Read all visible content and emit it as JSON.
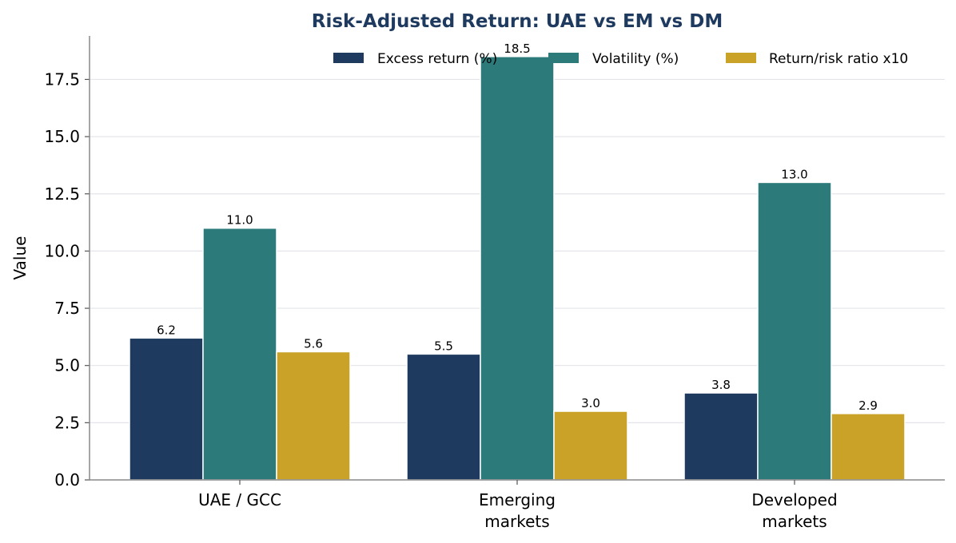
{
  "chart_data": {
    "type": "bar",
    "title": "Risk-Adjusted Return: UAE vs EM vs DM",
    "xlabel": "",
    "ylabel": "Value",
    "categories": [
      [
        "UAE / GCC"
      ],
      [
        "Emerging",
        "markets"
      ],
      [
        "Developed",
        "markets"
      ]
    ],
    "series": [
      {
        "name": "Excess return (%)",
        "values": [
          6.2,
          5.5,
          3.8
        ],
        "labels": [
          "6.2",
          "5.5",
          "3.8"
        ],
        "color": "#1f3a5f"
      },
      {
        "name": "Volatility (%)",
        "values": [
          11.0,
          18.5,
          13.0
        ],
        "labels": [
          "11.0",
          "18.5",
          "13.0"
        ],
        "color": "#2d7a7b"
      },
      {
        "name": "Return/risk ratio x10",
        "values": [
          5.6,
          3.0,
          2.9
        ],
        "labels": [
          "5.6",
          "3.0",
          "2.9"
        ],
        "color": "#c9a227"
      }
    ],
    "ylim": [
      0,
      19.4
    ],
    "yticks": [
      "0.0",
      "2.5",
      "5.0",
      "7.5",
      "10.0",
      "12.5",
      "15.0",
      "17.5"
    ],
    "grid": true,
    "legend_position": "top-right",
    "title_color": "#1f3a5f"
  }
}
